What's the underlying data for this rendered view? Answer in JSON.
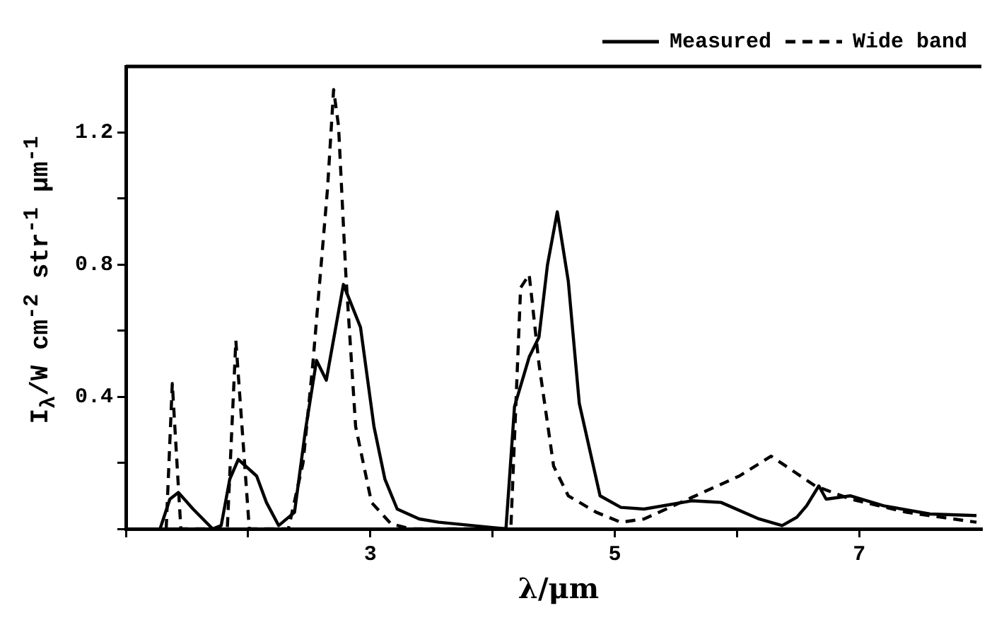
{
  "chart_data": {
    "type": "line",
    "xlabel": "λ/μm",
    "ylabel": "I$_{λ}$/W cm$^{-2}$ str$^{-1}$ μm$^{-1}$",
    "xlim": [
      1,
      8
    ],
    "xticks": [
      {
        "value": 1,
        "label": null
      },
      {
        "value": 2,
        "label": null
      },
      3,
      {
        "value": 4,
        "label": null
      },
      5,
      {
        "value": 6,
        "label": null
      },
      7
    ],
    "ylim": [
      0,
      1.4
    ],
    "yticks": [
      {
        "value": 0,
        "label": null
      },
      {
        "value": 0.2,
        "label": null
      },
      0.4,
      {
        "value": 0.6,
        "label": null
      },
      0.8,
      {
        "value": 1.0,
        "label": null
      },
      1.2
    ],
    "grid": false,
    "legend": "top right",
    "marker": "none",
    "series": [
      {
        "name": "Measured",
        "color": "#000000",
        "line_style": "solid",
        "x": [
          1.28,
          1.36,
          1.43,
          1.55,
          1.71,
          1.78,
          1.85,
          1.92,
          2.07,
          2.15,
          2.25,
          2.38,
          2.47,
          2.56,
          2.64,
          2.78,
          2.92,
          3.03,
          3.12,
          3.22,
          3.4,
          3.56,
          3.97,
          4.11,
          4.18,
          4.3,
          4.38,
          4.45,
          4.53,
          4.62,
          4.71,
          4.88,
          5.05,
          5.24,
          5.63,
          5.87,
          6.18,
          6.37,
          6.49,
          6.57,
          6.67,
          6.73,
          6.93,
          7.2,
          7.58,
          7.96
        ],
        "values": [
          0,
          0.09,
          0.11,
          0.06,
          0,
          0.01,
          0.15,
          0.21,
          0.16,
          0.08,
          0.01,
          0.05,
          0.3,
          0.51,
          0.45,
          0.74,
          0.61,
          0.31,
          0.15,
          0.06,
          0.03,
          0.02,
          0.005,
          0,
          0.37,
          0.52,
          0.58,
          0.8,
          0.96,
          0.75,
          0.38,
          0.1,
          0.065,
          0.06,
          0.085,
          0.08,
          0.03,
          0.01,
          0.035,
          0.07,
          0.13,
          0.09,
          0.1,
          0.07,
          0.045,
          0.04
        ]
      },
      {
        "name": "Wide band",
        "color": "#000000",
        "line_style": "dashed",
        "x": [
          1.33,
          1.38,
          1.45,
          1.83,
          1.9,
          2.01,
          2.33,
          2.45,
          2.53,
          2.65,
          2.7,
          2.74,
          2.8,
          2.88,
          3.01,
          3.17,
          3.33,
          4.15,
          4.23,
          4.3,
          4.38,
          4.5,
          4.62,
          4.85,
          5.05,
          5.24,
          5.63,
          6.02,
          6.28,
          6.64,
          6.93,
          7.39,
          7.96
        ],
        "values": [
          0,
          0.44,
          0,
          0,
          0.57,
          0,
          0,
          0.2,
          0.5,
          1.03,
          1.33,
          1.22,
          0.77,
          0.31,
          0.08,
          0.015,
          0,
          0,
          0.73,
          0.77,
          0.5,
          0.19,
          0.1,
          0.05,
          0.02,
          0.03,
          0.095,
          0.16,
          0.22,
          0.13,
          0.09,
          0.05,
          0.02
        ]
      }
    ]
  }
}
